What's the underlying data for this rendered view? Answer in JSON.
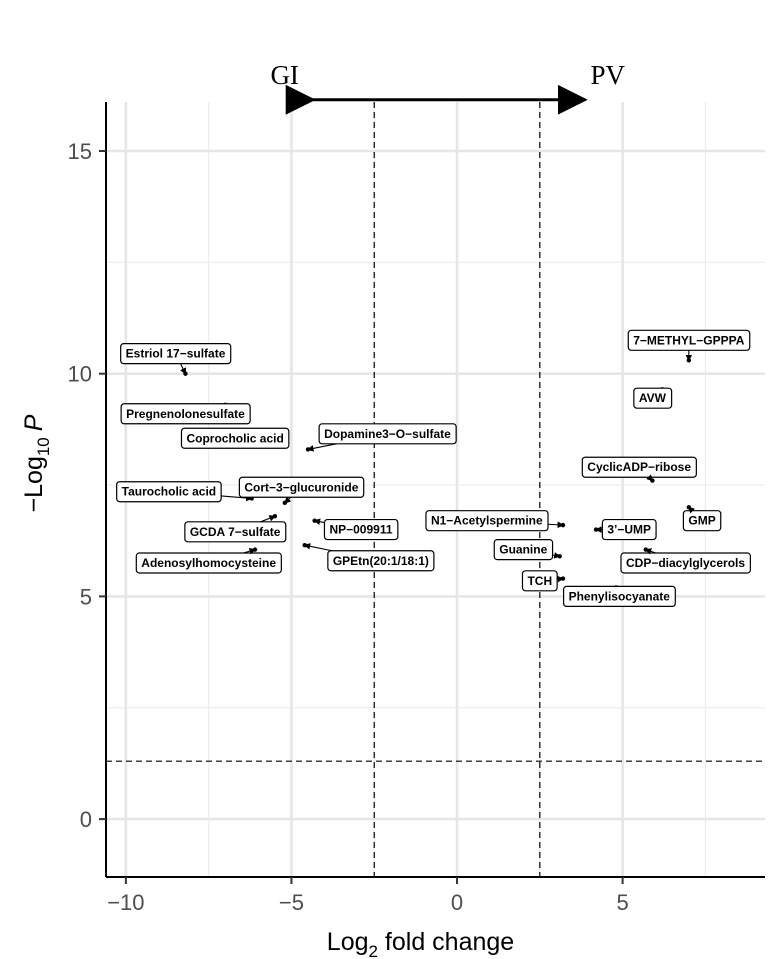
{
  "chart_data": {
    "type": "scatter",
    "xlabel_main": "Log",
    "xlabel_sub": "2",
    "xlabel_rest": " fold change",
    "ylabel_prefix": "−Log",
    "ylabel_sub": "10",
    "ylabel_italic": "P",
    "xlim": [
      -10.6,
      9.3
    ],
    "ylim": [
      -1.3,
      16.1
    ],
    "x_ticks": [
      -10,
      -5,
      0,
      5
    ],
    "x_tick_labels": [
      "−10",
      "−5",
      "0",
      "5"
    ],
    "y_ticks": [
      0,
      5,
      10,
      15
    ],
    "y_tick_labels": [
      "0",
      "5",
      "10",
      "15"
    ],
    "grid": true,
    "fold_change_cutoffs": [
      -2.5,
      2.5
    ],
    "p_cutoff": 1.3,
    "direction_arrow": {
      "from": -4.6,
      "to": 4.1,
      "y": 16.15
    },
    "group_left": "GI",
    "group_right": "PV",
    "points": [
      {
        "name": "7−METHYL−GPPPA",
        "x": 7.0,
        "y": 10.3,
        "lx": 7.0,
        "ly": 10.75
      },
      {
        "name": "AVW",
        "x": 6.2,
        "y": 9.65,
        "lx": 5.9,
        "ly": 9.45
      },
      {
        "name": "Estriol 17−sulfate",
        "x": -8.2,
        "y": 10.0,
        "lx": -8.5,
        "ly": 10.45
      },
      {
        "name": "Pregnenolonesulfate",
        "x": -7.0,
        "y": 9.3,
        "lx": -8.2,
        "ly": 9.1
      },
      {
        "name": "Coprocholic acid",
        "x": -6.6,
        "y": 8.7,
        "lx": -6.7,
        "ly": 8.55
      },
      {
        "name": "Dopamine3−O−sulfate",
        "x": -4.5,
        "y": 8.3,
        "lx": -2.1,
        "ly": 8.65
      },
      {
        "name": "CyclicADP−ribose",
        "x": 5.9,
        "y": 7.6,
        "lx": 5.5,
        "ly": 7.9
      },
      {
        "name": "Taurocholic acid",
        "x": -6.2,
        "y": 7.2,
        "lx": -8.7,
        "ly": 7.35
      },
      {
        "name": "Cort−3−glucuronide",
        "x": -5.2,
        "y": 7.1,
        "lx": -4.7,
        "ly": 7.45
      },
      {
        "name": "GMP",
        "x": 7.0,
        "y": 7.0,
        "lx": 7.4,
        "ly": 6.7
      },
      {
        "name": "N1−Acetylspermine",
        "x": 3.2,
        "y": 6.6,
        "lx": 0.9,
        "ly": 6.7
      },
      {
        "name": "NP−009911",
        "x": -4.3,
        "y": 6.7,
        "lx": -2.9,
        "ly": 6.5
      },
      {
        "name": "GCDA 7−sulfate",
        "x": -5.5,
        "y": 6.8,
        "lx": -6.7,
        "ly": 6.45
      },
      {
        "name": "3’−UMP",
        "x": 4.2,
        "y": 6.5,
        "lx": 5.2,
        "ly": 6.5
      },
      {
        "name": "Adenosylhomocysteine",
        "x": -6.1,
        "y": 6.05,
        "lx": -7.5,
        "ly": 5.75
      },
      {
        "name": "GPEtn(20:1/18:1)",
        "x": -4.6,
        "y": 6.15,
        "lx": -2.3,
        "ly": 5.8
      },
      {
        "name": "Guanine",
        "x": 3.1,
        "y": 5.9,
        "lx": 2.0,
        "ly": 6.05
      },
      {
        "name": "CDP−diacylglycerols",
        "x": 5.7,
        "y": 6.05,
        "lx": 6.9,
        "ly": 5.75
      },
      {
        "name": "TCH",
        "x": 3.2,
        "y": 5.4,
        "lx": 2.5,
        "ly": 5.35
      },
      {
        "name": "Phenylisocyanate",
        "x": 4.8,
        "y": 5.2,
        "lx": 4.9,
        "ly": 5.0
      }
    ]
  }
}
